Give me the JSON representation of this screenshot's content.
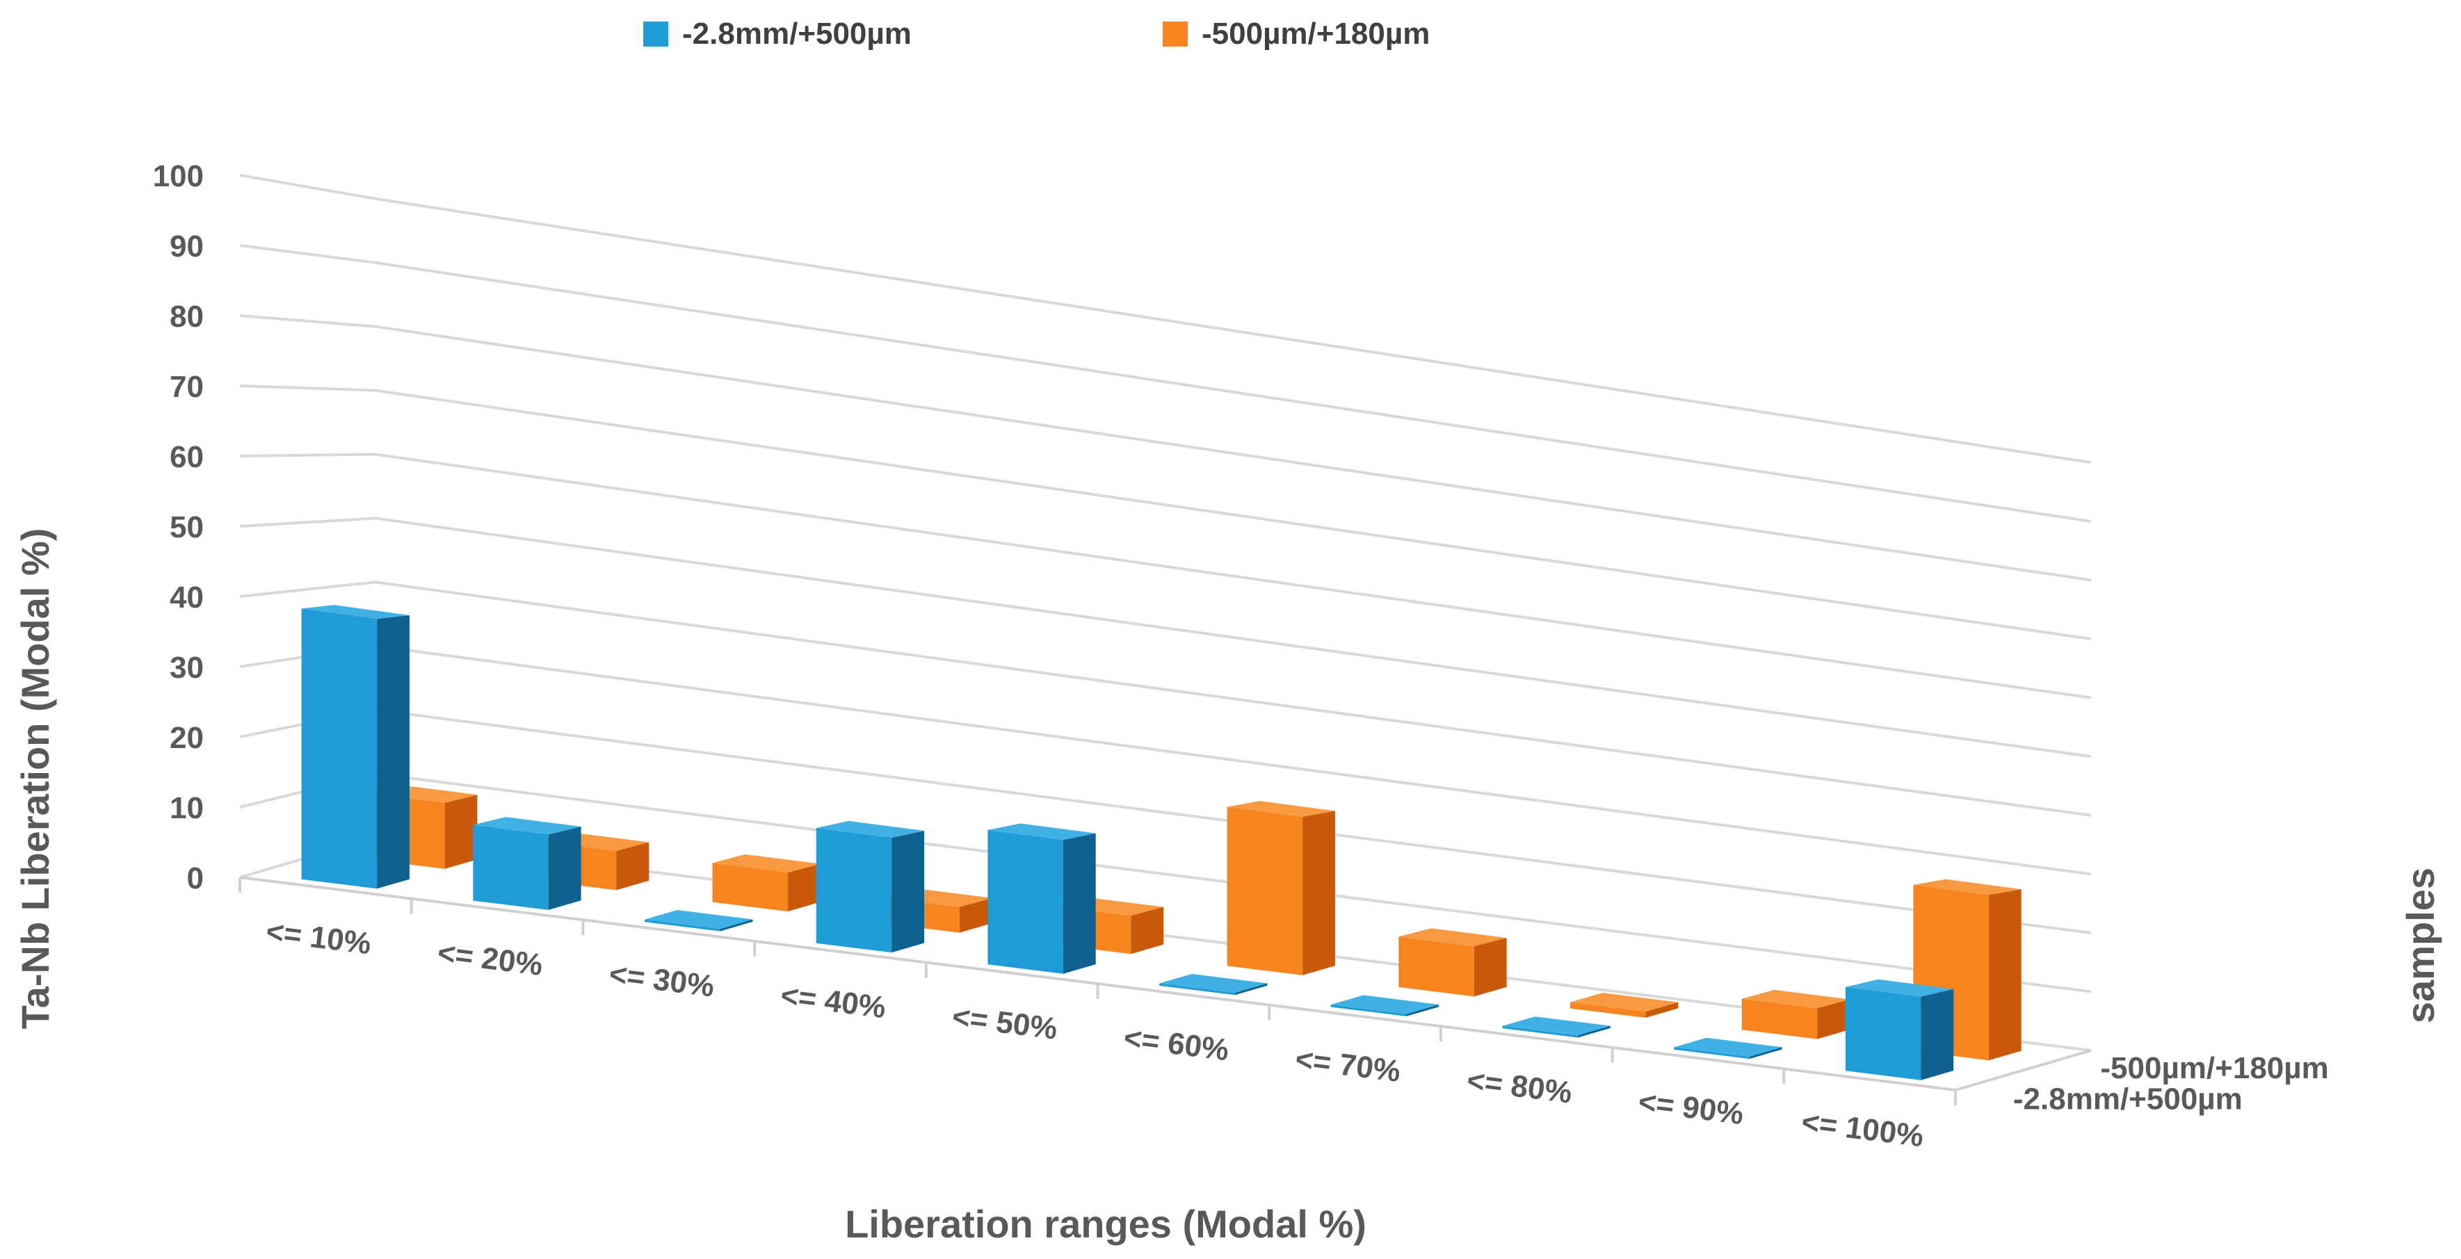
{
  "chart_data": {
    "type": "bar",
    "subtype": "3d-column",
    "categories": [
      "<= 10%",
      "<= 20%",
      "<= 30%",
      "<= 40%",
      "<= 50%",
      "<= 60%",
      "<= 70%",
      "<= 80%",
      "<= 90%",
      "<= 100%"
    ],
    "series": [
      {
        "name": "-2.8mm/+500µm",
        "color": "#1f9bd7",
        "side": "#11618f",
        "top": "#3fb1e5",
        "values": [
          39,
          11,
          0,
          17,
          20,
          0,
          0,
          0,
          0,
          13
        ]
      },
      {
        "name": "-500µm/+180µm",
        "color": "#f7841e",
        "side": "#c9590b",
        "top": "#f99a41",
        "values": [
          10,
          6,
          6,
          4,
          6,
          25,
          8,
          1,
          5,
          27
        ]
      }
    ],
    "depth_labels": [
      "-500µm/+180µm",
      "-2.8mm/+500µm"
    ],
    "y_ticks": [
      0,
      10,
      20,
      30,
      40,
      50,
      60,
      70,
      80,
      90,
      100
    ],
    "ylim": [
      0,
      100
    ],
    "ylabel": "Ta-Nb Liberation (Modal %)",
    "xlabel": "Liberation ranges (Modal %)",
    "zlabel": "samples",
    "legend_position": "top"
  }
}
